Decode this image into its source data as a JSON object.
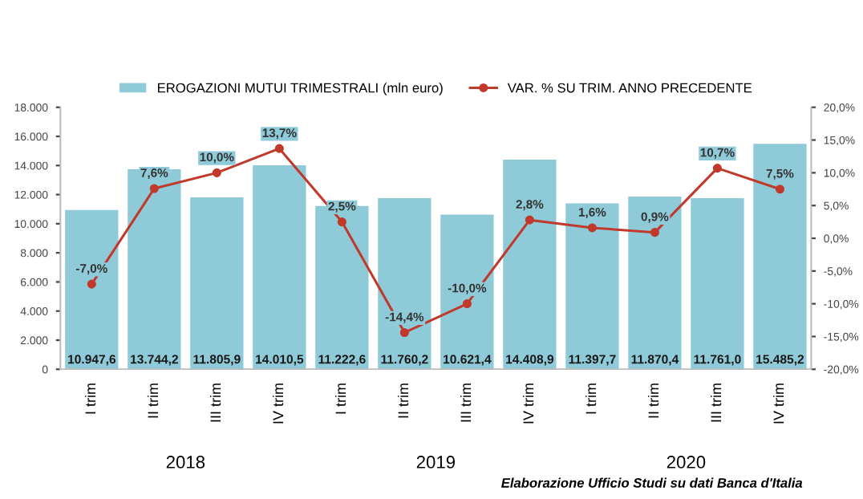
{
  "chart_data": {
    "type": "bar",
    "categories": [
      "I trim",
      "II trim",
      "III trim",
      "IV trim",
      "I trim",
      "II trim",
      "III trim",
      "IV trim",
      "I trim",
      "II trim",
      "III trim",
      "IV trim"
    ],
    "series": [
      {
        "name": "EROGAZIONI MUTUI TRIMESTRALI (mln euro)",
        "color": "#8ecad8",
        "values": [
          10947.6,
          13744.2,
          11805.9,
          14010.5,
          11222.6,
          11760.2,
          10621.4,
          14408.9,
          11397.7,
          11870.4,
          11761.0,
          15485.2
        ],
        "value_labels": [
          "10.947,6",
          "13.744,2",
          "11.805,9",
          "14.010,5",
          "11.222,6",
          "11.760,2",
          "10.621,4",
          "14.408,9",
          "11.397,7",
          "11.870,4",
          "11.761,0",
          "15.485,2"
        ]
      },
      {
        "name": "VAR. % SU TRIM. ANNO PRECEDENTE",
        "type": "line",
        "axis": "y2",
        "color": "#c0392b",
        "marker": "circle",
        "values": [
          -7.0,
          7.6,
          10.0,
          13.7,
          2.5,
          -14.4,
          -10.0,
          2.8,
          1.6,
          0.9,
          10.7,
          7.5
        ],
        "value_labels": [
          "-7,0%",
          "7,6%",
          "10,0%",
          "13,7%",
          "2,5%",
          "-14,4%",
          "-10,0%",
          "2,8%",
          "1,6%",
          "0,9%",
          "10,7%",
          "7,5%"
        ]
      }
    ],
    "ylim": [
      0,
      18000
    ],
    "yticks": [
      0,
      {
        "value": 2000,
        "label": "2.000"
      },
      {
        "value": 4000,
        "label": "4.000"
      },
      {
        "value": 6000,
        "label": "6.000"
      },
      {
        "value": 8000,
        "label": "8.000"
      },
      {
        "value": 10000,
        "label": "10.000"
      },
      {
        "value": 12000,
        "label": "12.000"
      },
      {
        "value": 14000,
        "label": "14.000"
      },
      {
        "value": 16000,
        "label": "16.000"
      },
      {
        "value": 18000,
        "label": "18.000"
      }
    ],
    "y2lim": [
      -20,
      20
    ],
    "y2ticks": [
      {
        "value": -20,
        "label": "-20,0%"
      },
      {
        "value": -15,
        "label": "-15,0%"
      },
      {
        "value": -10,
        "label": "-10,0%"
      },
      {
        "value": -5,
        "label": "-5,0%"
      },
      {
        "value": 0,
        "label": "0,0%"
      },
      {
        "value": 5,
        "label": "5,0%"
      },
      {
        "value": 10,
        "label": "10,0%"
      },
      {
        "value": 15,
        "label": "15,0%"
      },
      {
        "value": 20,
        "label": "20,0%"
      }
    ],
    "grid": false,
    "legend": "top",
    "annotations": [
      "2018",
      "2019",
      "2020",
      "Elaborazione Ufficio Studi su dati Banca d'Italia"
    ]
  }
}
